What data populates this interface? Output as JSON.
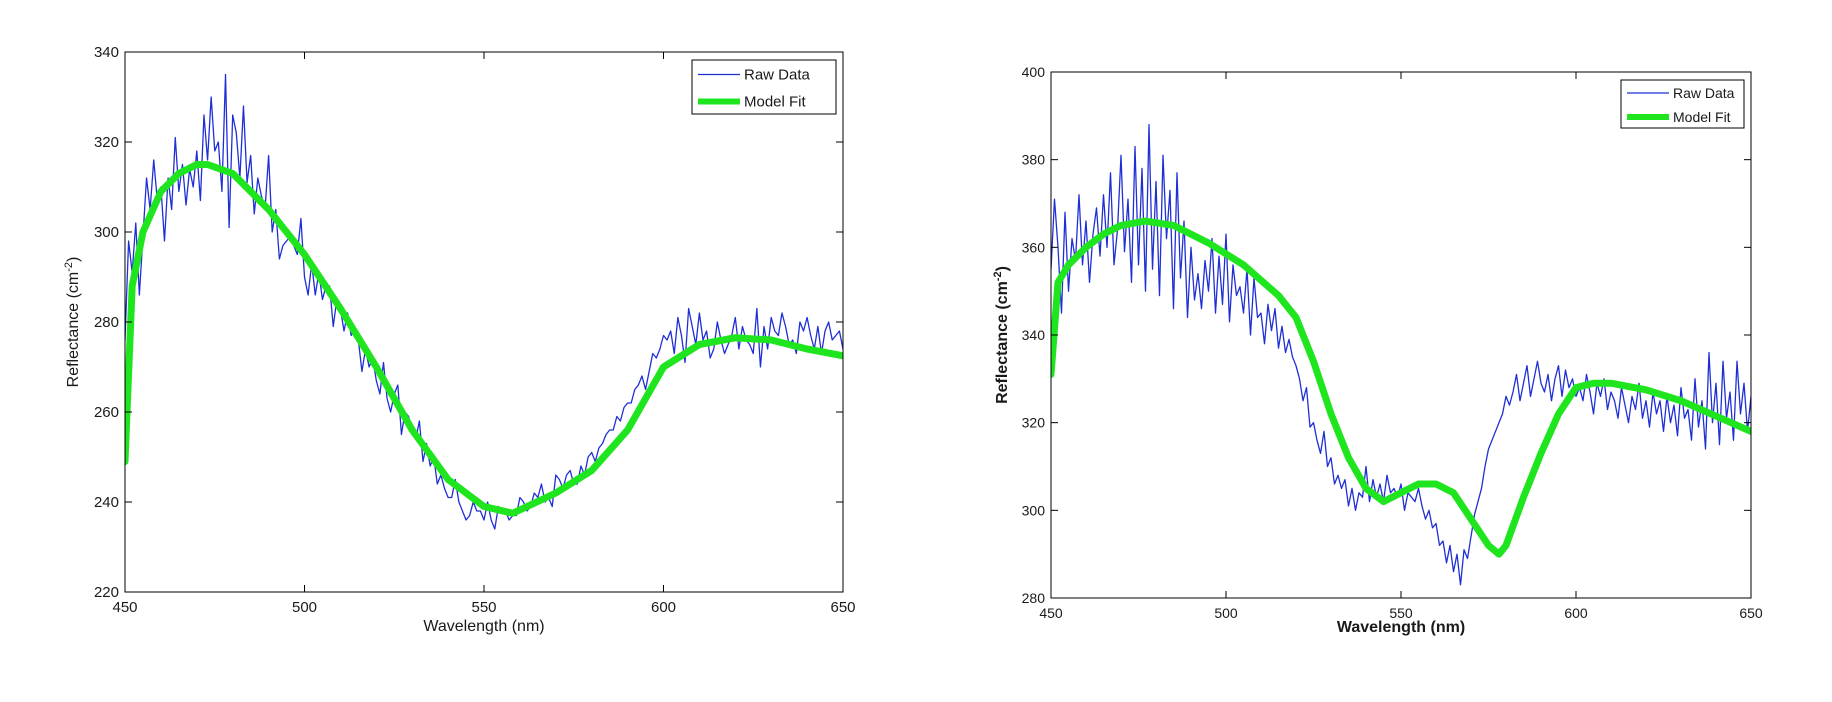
{
  "colors": {
    "raw": "#1f2fd6",
    "fit": "#1ee51e",
    "axis": "#000000",
    "background": "#ffffff"
  },
  "chart_data": [
    {
      "type": "line",
      "title": "",
      "xlabel": "Wavelength (nm)",
      "ylabel": "Reflectance (cm",
      "ylabel_exp": "-2",
      "ylabel_close": ")",
      "xlim": [
        450,
        650
      ],
      "ylim": [
        220,
        340
      ],
      "xticks": [
        450,
        500,
        550,
        600,
        650
      ],
      "yticks": [
        220,
        240,
        260,
        280,
        300,
        320,
        340
      ],
      "xtick_labels": [
        "450",
        "500",
        "550",
        "600",
        "650"
      ],
      "ytick_labels": [
        "220",
        "240",
        "260",
        "280",
        "300",
        "320",
        "340"
      ],
      "legend_position": "top-right",
      "grid": false,
      "series": [
        {
          "name": "Raw Data",
          "style": "thin-line",
          "x": [
            450,
            451,
            452,
            453,
            454,
            455,
            456,
            457,
            458,
            459,
            460,
            461,
            462,
            463,
            464,
            465,
            466,
            467,
            468,
            469,
            470,
            471,
            472,
            473,
            474,
            475,
            476,
            477,
            478,
            479,
            480,
            481,
            482,
            483,
            484,
            485,
            486,
            487,
            488,
            489,
            490,
            491,
            492,
            493,
            494,
            495,
            496,
            497,
            498,
            499,
            500,
            501,
            502,
            503,
            504,
            505,
            506,
            507,
            508,
            509,
            510,
            511,
            512,
            513,
            514,
            515,
            516,
            517,
            518,
            519,
            520,
            521,
            522,
            523,
            524,
            525,
            526,
            527,
            528,
            529,
            530,
            531,
            532,
            533,
            534,
            535,
            536,
            537,
            538,
            539,
            540,
            541,
            542,
            543,
            544,
            545,
            546,
            547,
            548,
            549,
            550,
            551,
            552,
            553,
            554,
            555,
            556,
            557,
            558,
            559,
            560,
            561,
            562,
            563,
            564,
            565,
            566,
            567,
            568,
            569,
            570,
            571,
            572,
            573,
            574,
            575,
            576,
            577,
            578,
            579,
            580,
            581,
            582,
            583,
            584,
            585,
            586,
            587,
            588,
            589,
            590,
            591,
            592,
            593,
            594,
            595,
            596,
            597,
            598,
            599,
            600,
            601,
            602,
            603,
            604,
            605,
            606,
            607,
            608,
            609,
            610,
            611,
            612,
            613,
            614,
            615,
            616,
            617,
            618,
            619,
            620,
            621,
            622,
            623,
            624,
            625,
            626,
            627,
            628,
            629,
            630,
            631,
            632,
            633,
            634,
            635,
            636,
            637,
            638,
            639,
            640,
            641,
            642,
            643,
            644,
            645,
            646,
            647,
            648,
            649,
            650
          ],
          "values": [
            276,
            298,
            291,
            302,
            286,
            299,
            312,
            305,
            316,
            307,
            310,
            298,
            312,
            305,
            321,
            309,
            315,
            306,
            314,
            310,
            318,
            307,
            326,
            316,
            330,
            318,
            320,
            309,
            335,
            301,
            326,
            322,
            312,
            328,
            311,
            317,
            304,
            312,
            308,
            305,
            317,
            300,
            305,
            294,
            297,
            298,
            299,
            297,
            295,
            303,
            290,
            286,
            293,
            286,
            291,
            285,
            288,
            288,
            279,
            285,
            283,
            278,
            282,
            277,
            279,
            276,
            269,
            274,
            270,
            272,
            267,
            264,
            271,
            263,
            260,
            264,
            266,
            255,
            260,
            259,
            256,
            254,
            258,
            249,
            253,
            248,
            250,
            244,
            246,
            243,
            241,
            241,
            245,
            240,
            238,
            236,
            237,
            240,
            238,
            238,
            236,
            240,
            236,
            234,
            239,
            238,
            238,
            236,
            237,
            237,
            241,
            240,
            238,
            239,
            242,
            241,
            244,
            240,
            241,
            239,
            246,
            245,
            243,
            246,
            247,
            244,
            244,
            248,
            246,
            250,
            251,
            249,
            252,
            253,
            255,
            256,
            256,
            259,
            258,
            261,
            262,
            262,
            265,
            266,
            268,
            265,
            269,
            273,
            272,
            274,
            277,
            276,
            278,
            273,
            281,
            277,
            271,
            283,
            279,
            275,
            282,
            276,
            278,
            272,
            274,
            280,
            276,
            273,
            275,
            277,
            281,
            274,
            279,
            276,
            275,
            273,
            283,
            270,
            279,
            274,
            281,
            278,
            277,
            282,
            279,
            275,
            276,
            273,
            280,
            278,
            281,
            277,
            274,
            279,
            273,
            278,
            280,
            276,
            277,
            278,
            274
          ]
        },
        {
          "name": "Model Fit",
          "style": "thick-line",
          "x": [
            450,
            452,
            455,
            460,
            465,
            470,
            473,
            480,
            490,
            500,
            510,
            520,
            530,
            540,
            550,
            558,
            570,
            580,
            590,
            600,
            610,
            620,
            630,
            640,
            650
          ],
          "values": [
            249,
            288,
            300,
            309,
            313,
            315,
            315,
            313,
            305,
            295,
            283,
            270,
            256,
            245,
            239,
            237.5,
            242,
            247,
            256,
            270,
            275,
            276.5,
            276,
            274,
            272.5
          ]
        }
      ]
    },
    {
      "type": "line",
      "title": "",
      "xlabel": "Wavelength (nm)",
      "ylabel": "Reflectance (cm",
      "ylabel_exp": "-2",
      "ylabel_close": ")",
      "xlim": [
        450,
        650
      ],
      "ylim": [
        280,
        400
      ],
      "xticks": [
        450,
        500,
        550,
        600,
        650
      ],
      "yticks": [
        280,
        300,
        320,
        340,
        360,
        380,
        400
      ],
      "xtick_labels": [
        "450",
        "500",
        "550",
        "600",
        "650"
      ],
      "ytick_labels": [
        "280",
        "300",
        "320",
        "340",
        "360",
        "380",
        "400"
      ],
      "legend_position": "top-right",
      "grid": false,
      "series": [
        {
          "name": "Raw Data",
          "style": "thin-line",
          "x": [
            450,
            451,
            452,
            453,
            454,
            455,
            456,
            457,
            458,
            459,
            460,
            461,
            462,
            463,
            464,
            465,
            466,
            467,
            468,
            469,
            470,
            471,
            472,
            473,
            474,
            475,
            476,
            477,
            478,
            479,
            480,
            481,
            482,
            483,
            484,
            485,
            486,
            487,
            488,
            489,
            490,
            491,
            492,
            493,
            494,
            495,
            496,
            497,
            498,
            499,
            500,
            501,
            502,
            503,
            504,
            505,
            506,
            507,
            508,
            509,
            510,
            511,
            512,
            513,
            514,
            515,
            516,
            517,
            518,
            519,
            520,
            521,
            522,
            523,
            524,
            525,
            526,
            527,
            528,
            529,
            530,
            531,
            532,
            533,
            534,
            535,
            536,
            537,
            538,
            539,
            540,
            541,
            542,
            543,
            544,
            545,
            546,
            547,
            548,
            549,
            550,
            551,
            552,
            553,
            554,
            555,
            556,
            557,
            558,
            559,
            560,
            561,
            562,
            563,
            564,
            565,
            566,
            567,
            568,
            569,
            570,
            571,
            572,
            573,
            574,
            575,
            576,
            577,
            578,
            579,
            580,
            581,
            582,
            583,
            584,
            585,
            586,
            587,
            588,
            589,
            590,
            591,
            592,
            593,
            594,
            595,
            596,
            597,
            598,
            599,
            600,
            601,
            602,
            603,
            604,
            605,
            606,
            607,
            608,
            609,
            610,
            611,
            612,
            613,
            614,
            615,
            616,
            617,
            618,
            619,
            620,
            621,
            622,
            623,
            624,
            625,
            626,
            627,
            628,
            629,
            630,
            631,
            632,
            633,
            634,
            635,
            636,
            637,
            638,
            639,
            640,
            641,
            642,
            643,
            644,
            645,
            646,
            647,
            648,
            649,
            650
          ],
          "values": [
            355,
            371,
            360,
            345,
            368,
            350,
            362,
            357,
            372,
            356,
            366,
            352,
            363,
            369,
            358,
            372,
            360,
            377,
            356,
            364,
            381,
            359,
            371,
            352,
            383,
            356,
            378,
            350,
            388,
            355,
            375,
            349,
            381,
            362,
            373,
            346,
            377,
            353,
            366,
            344,
            360,
            348,
            354,
            346,
            357,
            350,
            362,
            345,
            358,
            347,
            363,
            343,
            356,
            349,
            351,
            345,
            355,
            340,
            353,
            344,
            345,
            338,
            347,
            341,
            346,
            337,
            342,
            336,
            339,
            335,
            333,
            330,
            325,
            328,
            319,
            320,
            316,
            313,
            318,
            310,
            312,
            306,
            308,
            305,
            307,
            301,
            305,
            300,
            304,
            303,
            310,
            302,
            307,
            303,
            306,
            302,
            308,
            304,
            305,
            303,
            306,
            300,
            304,
            303,
            302,
            305,
            301,
            298,
            300,
            296,
            297,
            292,
            293,
            288,
            292,
            286,
            290,
            283,
            291,
            289,
            294,
            299,
            302,
            305,
            310,
            314,
            316,
            318,
            320,
            322,
            326,
            324,
            327,
            331,
            325,
            329,
            333,
            326,
            330,
            334,
            329,
            327,
            331,
            325,
            330,
            333,
            326,
            332,
            328,
            330,
            326,
            328,
            325,
            331,
            327,
            322,
            329,
            326,
            330,
            323,
            327,
            325,
            321,
            328,
            324,
            320,
            326,
            323,
            329,
            321,
            325,
            319,
            327,
            322,
            325,
            318,
            326,
            320,
            324,
            317,
            328,
            321,
            323,
            316,
            330,
            319,
            325,
            314,
            336,
            320,
            329,
            315,
            334,
            321,
            327,
            316,
            334,
            322,
            329,
            318,
            326
          ]
        },
        {
          "name": "Model Fit",
          "style": "thick-line",
          "x": [
            450,
            452,
            455,
            460,
            465,
            470,
            477,
            485,
            495,
            505,
            515,
            520,
            525,
            530,
            535,
            540,
            545,
            550,
            555,
            560,
            565,
            570,
            575,
            578,
            580,
            585,
            590,
            595,
            600,
            605,
            610,
            620,
            630,
            640,
            650
          ],
          "values": [
            331,
            352,
            356,
            360,
            363,
            365,
            366,
            365,
            361,
            356,
            349,
            344,
            334,
            322,
            312,
            305,
            302,
            304,
            306,
            306,
            304,
            298,
            292,
            290,
            292,
            303,
            313,
            322,
            328,
            329,
            329,
            327.5,
            325,
            321.5,
            318
          ]
        }
      ]
    }
  ]
}
